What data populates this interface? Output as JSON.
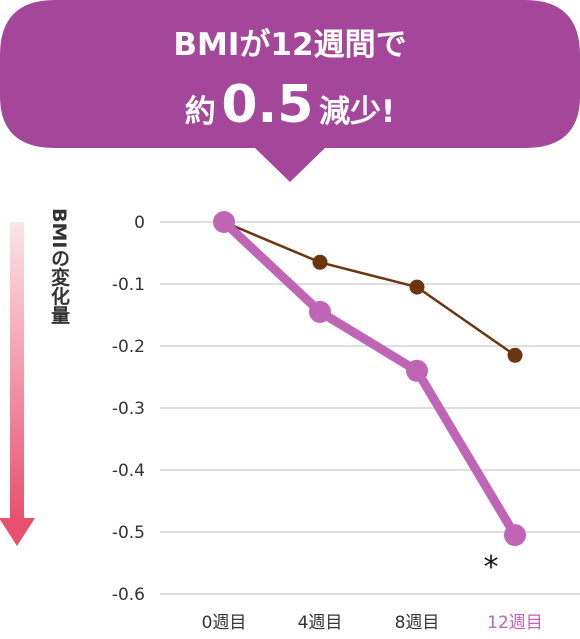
{
  "banner": {
    "line1": "BMIが12週間で",
    "line2_prefix": "約",
    "line2_value": "0.5",
    "line2_suffix": "減少!",
    "color": "#A4479A",
    "text_color": "#ffffff"
  },
  "chart_data": {
    "type": "line",
    "ylabel": "BMIの変化量",
    "categories": [
      "0週目",
      "4週目",
      "8週目",
      "12週目"
    ],
    "highlight_category_index": 3,
    "ylim": [
      -0.6,
      0
    ],
    "yticks": [
      "0",
      "-0.1",
      "-0.2",
      "-0.3",
      "-0.4",
      "-0.5",
      "-0.6"
    ],
    "grid": true,
    "series": [
      {
        "values": [
          0,
          -0.145,
          -0.24,
          -0.505
        ],
        "color": "#C065B5",
        "emphasis": true
      },
      {
        "values": [
          0,
          -0.065,
          -0.105,
          -0.215
        ],
        "color": "#6B3510",
        "emphasis": false
      }
    ],
    "annotation": {
      "text": "*",
      "category_index": 3
    },
    "arrow_gradient": [
      "#FBE4EA",
      "#E8506E"
    ]
  }
}
